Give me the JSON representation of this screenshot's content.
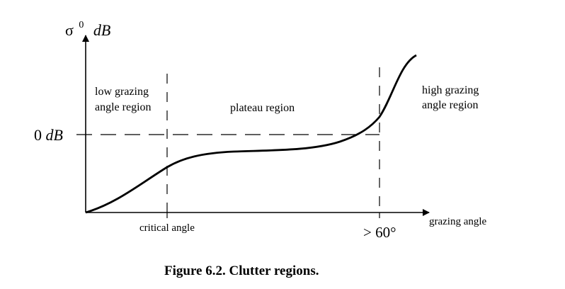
{
  "diagram": {
    "y_axis_label": {
      "symbol": "σ",
      "superscript": "0",
      "unit": "dB"
    },
    "x_axis_label": "grazing angle",
    "reference_level": {
      "value": "0",
      "unit": "dB"
    },
    "regions": {
      "low": {
        "line1": "low grazing",
        "line2": "angle region"
      },
      "plateau": "plateau region",
      "high": {
        "line1": "high grazing",
        "line2": "angle region"
      }
    },
    "x_markers": {
      "critical": "critical angle",
      "upper": "> 60°"
    },
    "caption": "Figure 6.2. Clutter regions."
  }
}
